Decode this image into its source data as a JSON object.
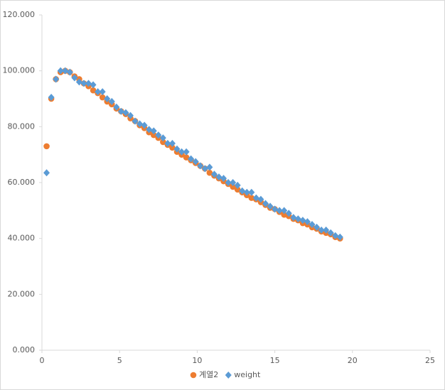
{
  "chart_data": {
    "type": "scatter",
    "x": [
      0.3,
      0.6,
      0.9,
      1.2,
      1.5,
      1.8,
      2.1,
      2.4,
      2.7,
      3.0,
      3.3,
      3.6,
      3.9,
      4.2,
      4.5,
      4.8,
      5.1,
      5.4,
      5.7,
      6.0,
      6.3,
      6.6,
      6.9,
      7.2,
      7.5,
      7.8,
      8.1,
      8.4,
      8.7,
      9.0,
      9.3,
      9.6,
      9.9,
      10.2,
      10.5,
      10.8,
      11.1,
      11.4,
      11.7,
      12.0,
      12.3,
      12.6,
      12.9,
      13.2,
      13.5,
      13.8,
      14.1,
      14.4,
      14.7,
      15.0,
      15.3,
      15.6,
      15.9,
      16.2,
      16.5,
      16.8,
      17.1,
      17.4,
      17.7,
      18.0,
      18.3,
      18.6,
      18.9,
      19.2
    ],
    "series": [
      {
        "name": "계열2",
        "color": "#ed7d31",
        "marker": "circle",
        "values": [
          73,
          90,
          97,
          99.5,
          100,
          99.5,
          98,
          97,
          95.5,
          94.5,
          93,
          92,
          90.5,
          89,
          88,
          86.5,
          85.5,
          84.5,
          83,
          82,
          80.5,
          79.5,
          78,
          77,
          76,
          74.5,
          73.5,
          72.5,
          71,
          70,
          69,
          68,
          67,
          66,
          65,
          63.5,
          62.5,
          61.5,
          60.5,
          59.5,
          58.5,
          57.5,
          56.5,
          55.5,
          54.5,
          54,
          53,
          52,
          51,
          50.5,
          49.5,
          48.5,
          48,
          47,
          46.5,
          45.5,
          45,
          44,
          43.5,
          42.5,
          42,
          41.5,
          40.5,
          40
        ]
      },
      {
        "name": "weight",
        "color": "#5b9bd5",
        "marker": "diamond",
        "values": [
          63.5,
          90.5,
          97,
          100,
          100,
          99.5,
          97.5,
          96,
          95.5,
          95.5,
          95,
          92.5,
          92.5,
          90,
          89,
          87,
          85.5,
          85,
          84,
          82,
          81,
          80.5,
          79,
          78.5,
          77,
          76,
          74,
          74,
          72,
          71,
          71,
          68.5,
          67.5,
          66,
          65,
          65.5,
          63,
          62,
          61.5,
          60,
          60,
          59,
          57,
          56.5,
          56.5,
          54.5,
          54,
          52.5,
          51.5,
          50.5,
          50,
          50,
          49,
          47.5,
          47,
          46.5,
          46,
          45,
          44,
          43,
          43,
          42,
          41,
          40.5
        ]
      }
    ],
    "xlim": [
      0,
      25
    ],
    "xticks": [
      0,
      5,
      10,
      15,
      20,
      25
    ],
    "ylim": [
      0,
      120
    ],
    "yticks": [
      {
        "value": 0,
        "label": "0.000"
      },
      {
        "value": 20,
        "label": "20.000"
      },
      {
        "value": 40,
        "label": "40.000"
      },
      {
        "value": 60,
        "label": "60.000"
      },
      {
        "value": 80,
        "label": "80.000"
      },
      {
        "value": 100,
        "label": "100.000"
      },
      {
        "value": 120,
        "label": "120.000"
      }
    ],
    "grid": false,
    "legend": "bottom"
  }
}
